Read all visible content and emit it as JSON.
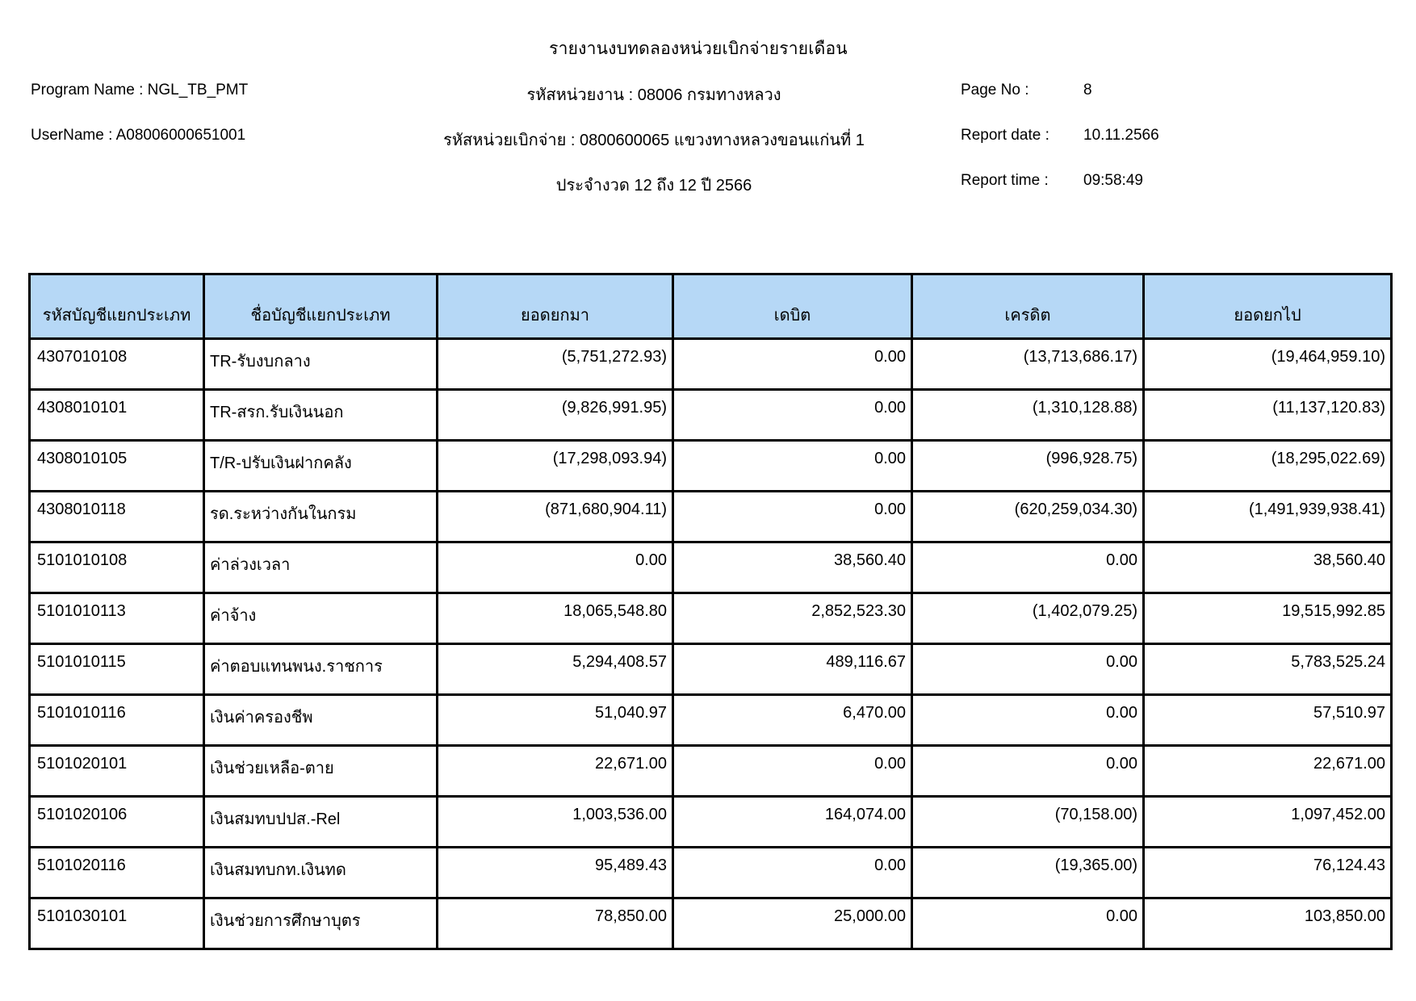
{
  "title": "รายงานงบทดลองหน่วยเบิกจ่ายรายเดือน",
  "meta": {
    "program": "Program Name : NGL_TB_PMT",
    "username": "UserName : A08006000651001",
    "agency": "รหัสหน่วยงาน : 08006 กรมทางหลวง",
    "disbursement_unit": "รหัสหน่วยเบิกจ่าย : 0800600065 แขวงทางหลวงขอนแก่นที่ 1",
    "period": "ประจำงวด 12 ถึง 12 ปี 2566",
    "page_label": "Page No :",
    "page_value": "8",
    "report_date_label": "Report date :",
    "report_date_value": "10.11.2566",
    "report_time_label": "Report time :",
    "report_time_value": "09:58:49"
  },
  "table": {
    "headers": [
      "รหัสบัญชีแยกประเภท",
      "ชื่อบัญชีแยกประเภท",
      "ยอดยกมา",
      "เดบิต",
      "เครดิต",
      "ยอดยกไป"
    ],
    "rows": [
      [
        "4307010108",
        "TR-รับงบกลาง",
        "(5,751,272.93)",
        "0.00",
        "(13,713,686.17)",
        "(19,464,959.10)"
      ],
      [
        "4308010101",
        "TR-สรก.รับเงินนอก",
        "(9,826,991.95)",
        "0.00",
        "(1,310,128.88)",
        "(11,137,120.83)"
      ],
      [
        "4308010105",
        "T/R-ปรับเงินฝากคลัง",
        "(17,298,093.94)",
        "0.00",
        "(996,928.75)",
        "(18,295,022.69)"
      ],
      [
        "4308010118",
        "รด.ระหว่างกันในกรม",
        "(871,680,904.11)",
        "0.00",
        "(620,259,034.30)",
        "(1,491,939,938.41)"
      ],
      [
        "5101010108",
        "ค่าล่วงเวลา",
        "0.00",
        "38,560.40",
        "0.00",
        "38,560.40"
      ],
      [
        "5101010113",
        "ค่าจ้าง",
        "18,065,548.80",
        "2,852,523.30",
        "(1,402,079.25)",
        "19,515,992.85"
      ],
      [
        "5101010115",
        "ค่าตอบแทนพนง.ราชการ",
        "5,294,408.57",
        "489,116.67",
        "0.00",
        "5,783,525.24"
      ],
      [
        "5101010116",
        "เงินค่าครองชีพ",
        "51,040.97",
        "6,470.00",
        "0.00",
        "57,510.97"
      ],
      [
        "5101020101",
        "เงินช่วยเหลือ-ตาย",
        "22,671.00",
        "0.00",
        "0.00",
        "22,671.00"
      ],
      [
        "5101020106",
        "เงินสมทบปปส.-Rel",
        "1,003,536.00",
        "164,074.00",
        "(70,158.00)",
        "1,097,452.00"
      ],
      [
        "5101020116",
        "เงินสมทบกท.เงินทด",
        "95,489.43",
        "0.00",
        "(19,365.00)",
        "76,124.43"
      ],
      [
        "5101030101",
        "เงินช่วยการศึกษาบุตร",
        "78,850.00",
        "25,000.00",
        "0.00",
        "103,850.00"
      ]
    ],
    "column_names": [
      "account-code",
      "account-name",
      "balance-brought-forward",
      "debit",
      "credit",
      "balance-carried-forward"
    ]
  },
  "colors": {
    "header_bg": "#B6D8F6",
    "border": "#000000"
  }
}
